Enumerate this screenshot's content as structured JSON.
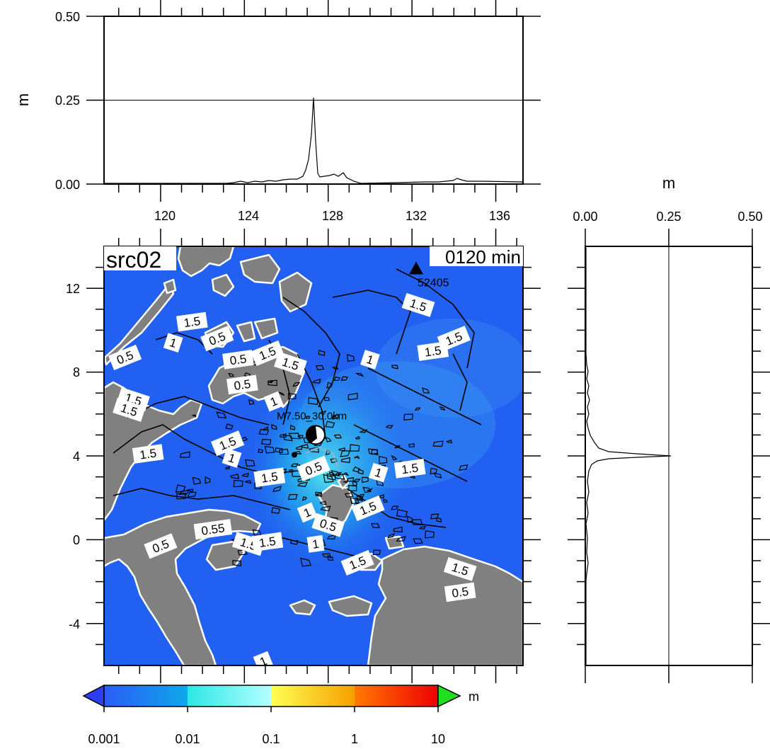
{
  "top_panel": {
    "ylabel": "m",
    "yticks": [
      "0.50",
      "0.25",
      "0.00"
    ],
    "xticks": [
      "120",
      "124",
      "128",
      "132",
      "136"
    ],
    "xlim": [
      117.3,
      137.3
    ],
    "ylim": [
      0,
      0.5
    ],
    "profile_peak": {
      "lon": 127.1,
      "value": 0.255
    }
  },
  "right_panel": {
    "xlabel": "m",
    "xticks": [
      "0.00",
      "0.25",
      "0.50"
    ],
    "xlim": [
      0,
      0.5
    ],
    "ylim": [
      -6,
      14
    ],
    "profile_peak": {
      "lat": 4.0,
      "value": 0.25
    }
  },
  "map": {
    "title": "src02",
    "time_label": "0120 min",
    "yticks": [
      "12",
      "8",
      "4",
      "0",
      "-4"
    ],
    "lon_range": [
      117.3,
      137.3
    ],
    "lat_range": [
      -6,
      14
    ],
    "ocean_color": "#2160f0",
    "land_color": "#808080",
    "station": {
      "id": "52405",
      "lon": 132.2,
      "lat": 12.9
    },
    "source": {
      "label": "M7.50_30.0km",
      "lon": 127.4,
      "lat": 5.0
    },
    "contour_labels": [
      {
        "text": "0.5",
        "lon": 118.3,
        "lat": 8.7
      },
      {
        "text": "1",
        "lon": 120.6,
        "lat": 9.4
      },
      {
        "text": "1.5",
        "lon": 121.5,
        "lat": 10.4
      },
      {
        "text": "0.5",
        "lon": 122.7,
        "lat": 9.6
      },
      {
        "text": "1.5",
        "lon": 118.7,
        "lat": 6.7
      },
      {
        "text": "0.5",
        "lon": 123.7,
        "lat": 8.6
      },
      {
        "text": "1.5",
        "lon": 125.1,
        "lat": 8.9
      },
      {
        "text": "1.5",
        "lon": 126.2,
        "lat": 8.4
      },
      {
        "text": "0.5",
        "lon": 123.9,
        "lat": 7.4
      },
      {
        "text": "1",
        "lon": 125.4,
        "lat": 6.6
      },
      {
        "text": "1.5",
        "lon": 118.5,
        "lat": 6.2
      },
      {
        "text": "1.5",
        "lon": 119.4,
        "lat": 4.1
      },
      {
        "text": "1.5",
        "lon": 123.2,
        "lat": 4.6
      },
      {
        "text": "1",
        "lon": 123.4,
        "lat": 3.9
      },
      {
        "text": "1.5",
        "lon": 125.2,
        "lat": 2.98
      },
      {
        "text": "0.5",
        "lon": 127.3,
        "lat": 3.4
      },
      {
        "text": "1",
        "lon": 130.4,
        "lat": 3.2
      },
      {
        "text": "1.5",
        "lon": 131.9,
        "lat": 3.4
      },
      {
        "text": "1.5",
        "lon": 129.9,
        "lat": 1.5
      },
      {
        "text": "1.5",
        "lon": 132.3,
        "lat": 11.2
      },
      {
        "text": "1.5",
        "lon": 133.0,
        "lat": 9.0
      },
      {
        "text": "1.5",
        "lon": 134.0,
        "lat": 9.6
      },
      {
        "text": "1",
        "lon": 130.0,
        "lat": 8.6
      },
      {
        "text": "0.55",
        "lon": 122.5,
        "lat": 0.5
      },
      {
        "text": "0.5",
        "lon": 120.0,
        "lat": -0.3
      },
      {
        "text": "1.5",
        "lon": 124.2,
        "lat": -0.2
      },
      {
        "text": "1.5",
        "lon": 125.1,
        "lat": -0.1
      },
      {
        "text": "1",
        "lon": 127.0,
        "lat": 1.3
      },
      {
        "text": "0.5",
        "lon": 128.0,
        "lat": 0.7
      },
      {
        "text": "1",
        "lon": 127.4,
        "lat": -0.2
      },
      {
        "text": "1.5",
        "lon": 129.4,
        "lat": -1.1
      },
      {
        "text": "1.5",
        "lon": 134.3,
        "lat": -1.4
      },
      {
        "text": "0.5",
        "lon": 134.3,
        "lat": -2.5
      },
      {
        "text": "1",
        "lon": 124.9,
        "lat": -5.8
      }
    ]
  },
  "colorbar": {
    "unit": "m",
    "ticks": [
      "0.001",
      "0.01",
      "0.1",
      "1",
      "10"
    ],
    "under_color": "#2b3ef0",
    "over_color": "#22dd22",
    "bands": [
      {
        "from": "#2b5cf5",
        "to": "#0fa8ea"
      },
      {
        "from": "#2ce8e6",
        "to": "#b3ffff"
      },
      {
        "from": "#ffff55",
        "to": "#f5a000"
      },
      {
        "from": "#ff7a00",
        "to": "#ee0000"
      }
    ]
  }
}
